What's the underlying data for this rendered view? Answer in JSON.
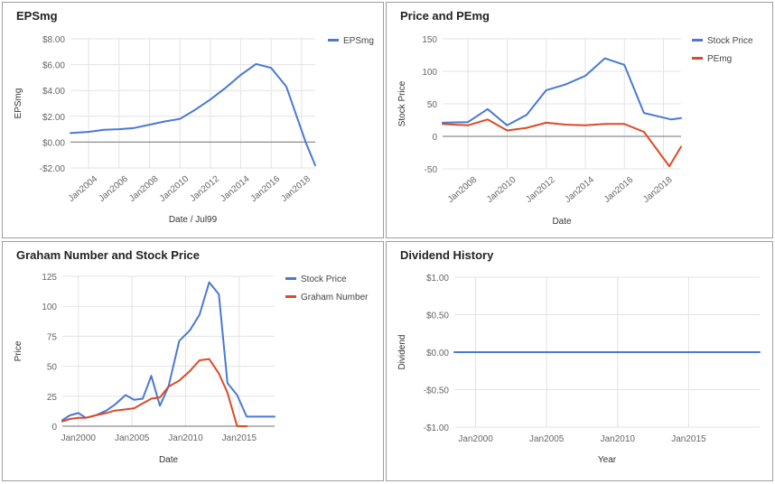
{
  "colors": {
    "blue": "#4a78d6",
    "red": "#dc4a27",
    "grid": "#e3e3e3",
    "zero": "#8c8c8c",
    "text": "#666666"
  },
  "chart_data": [
    {
      "type": "line",
      "title": "EPSmg",
      "xlabel": "Date / Jul99",
      "ylabel": "EPSmg",
      "xlim": [
        2002.8,
        2018.9
      ],
      "ylim": [
        -2,
        8
      ],
      "yticks": [
        -2,
        0,
        2,
        4,
        6,
        8
      ],
      "ytick_labels": [
        "-$2.00",
        "$0.00",
        "$2.00",
        "$4.00",
        "$6.00",
        "$8.00"
      ],
      "xticks": [
        2004,
        2006,
        2008,
        2010,
        2012,
        2014,
        2016,
        2018
      ],
      "xtick_labels": [
        "Jan2004",
        "Jan2006",
        "Jan2008",
        "Jan2010",
        "Jan2012",
        "Jan2014",
        "Jan2016",
        "Jan2018"
      ],
      "legend_position": "top-right",
      "series": [
        {
          "name": "EPSmg",
          "color": "#4a78d6",
          "x": [
            2002.8,
            2004,
            2005,
            2006,
            2007,
            2008,
            2009,
            2010,
            2011,
            2012,
            2013,
            2014,
            2015,
            2016,
            2017,
            2018.3,
            2018.9
          ],
          "y": [
            0.7,
            0.8,
            0.95,
            1.0,
            1.1,
            1.35,
            1.6,
            1.8,
            2.5,
            3.3,
            4.2,
            5.2,
            6.05,
            5.75,
            4.3,
            -0.1,
            -1.8
          ]
        }
      ]
    },
    {
      "type": "line",
      "title": "Price and PEmg",
      "xlabel": "Date",
      "ylabel": "Stock Price",
      "xlim": [
        2006.7,
        2018.9
      ],
      "ylim": [
        -50,
        150
      ],
      "yticks": [
        -50,
        0,
        50,
        100,
        150
      ],
      "ytick_labels": [
        "-50",
        "0",
        "50",
        "100",
        "150"
      ],
      "xticks": [
        2008,
        2010,
        2012,
        2014,
        2016,
        2018
      ],
      "xtick_labels": [
        "Jan2008",
        "Jan2010",
        "Jan2012",
        "Jan2014",
        "Jan2016",
        "Jan2018"
      ],
      "legend_position": "top-right",
      "series": [
        {
          "name": "Stock Price",
          "color": "#4a78d6",
          "x": [
            2006.7,
            2008,
            2009,
            2010,
            2011,
            2012,
            2013,
            2014,
            2015,
            2016,
            2017,
            2018.4,
            2018.9
          ],
          "y": [
            21,
            22,
            42,
            17,
            33,
            71,
            80,
            93,
            120,
            110,
            36,
            26,
            28
          ]
        },
        {
          "name": "PEmg",
          "color": "#dc4a27",
          "x": [
            2006.7,
            2008,
            2009,
            2010,
            2011,
            2012,
            2013,
            2014,
            2015,
            2016,
            2017,
            2018.3,
            2018.9
          ],
          "y": [
            19,
            17,
            26,
            9,
            13,
            21,
            18,
            17,
            19,
            19,
            7,
            -46,
            -16
          ]
        }
      ]
    },
    {
      "type": "line",
      "title": "Graham Number and Stock Price",
      "xlabel": "Date",
      "ylabel": "Price",
      "xlim": [
        1998.5,
        2018.3
      ],
      "ylim": [
        0,
        125
      ],
      "yticks": [
        0,
        25,
        50,
        75,
        100,
        125
      ],
      "ytick_labels": [
        "0",
        "25",
        "50",
        "75",
        "100",
        "125"
      ],
      "xticks": [
        2000,
        2005,
        2010,
        2015
      ],
      "xtick_labels": [
        "Jan2000",
        "Jan2005",
        "Jan2010",
        "Jan2015"
      ],
      "legend_position": "top-right",
      "series": [
        {
          "name": "Stock Price",
          "color": "#4a78d6",
          "x": [
            1998.5,
            1999.2,
            2000,
            2000.7,
            2001.6,
            2002.6,
            2003.4,
            2004.4,
            2005.2,
            2006,
            2006.8,
            2007.6,
            2008.4,
            2009.4,
            2010.4,
            2011.3,
            2012.2,
            2013.1,
            2013.9,
            2014.8,
            2015.7,
            2016.6,
            2017.5,
            2018.3
          ],
          "y": [
            5,
            9,
            11,
            7,
            9,
            13,
            18,
            26,
            22,
            23,
            42,
            17,
            33,
            71,
            80,
            93,
            120,
            110,
            36,
            26,
            8,
            8,
            8,
            8
          ]
        },
        {
          "name": "Graham Number",
          "color": "#dc4a27",
          "x": [
            1998.5,
            1999.2,
            2000,
            2000.7,
            2001.6,
            2002.6,
            2003.4,
            2004.4,
            2005.2,
            2006,
            2006.8,
            2007.6,
            2008.4,
            2009.4,
            2010.4,
            2011.3,
            2012.2,
            2013.1,
            2013.9,
            2014.8,
            2015.7
          ],
          "y": [
            4,
            6,
            7,
            7,
            9,
            11,
            13,
            14,
            15,
            19,
            23,
            24,
            33,
            38,
            46,
            55,
            56,
            44,
            28,
            0,
            0
          ]
        }
      ]
    },
    {
      "type": "line",
      "title": "Dividend History",
      "xlabel": "Year",
      "ylabel": "Dividend",
      "xlim": [
        1998.5,
        2020
      ],
      "ylim": [
        -1,
        1
      ],
      "yticks": [
        -1,
        -0.5,
        0,
        0.5,
        1
      ],
      "ytick_labels": [
        "-$1.00",
        "-$0.50",
        "$0.00",
        "$0.50",
        "$1.00"
      ],
      "xticks": [
        2000,
        2005,
        2010,
        2015
      ],
      "xtick_labels": [
        "Jan2000",
        "Jan2005",
        "Jan2010",
        "Jan2015"
      ],
      "legend_position": "none",
      "series": [
        {
          "name": "",
          "color": "#4a78d6",
          "x": [
            1998.5,
            2020
          ],
          "y": [
            0,
            0
          ]
        }
      ]
    }
  ]
}
